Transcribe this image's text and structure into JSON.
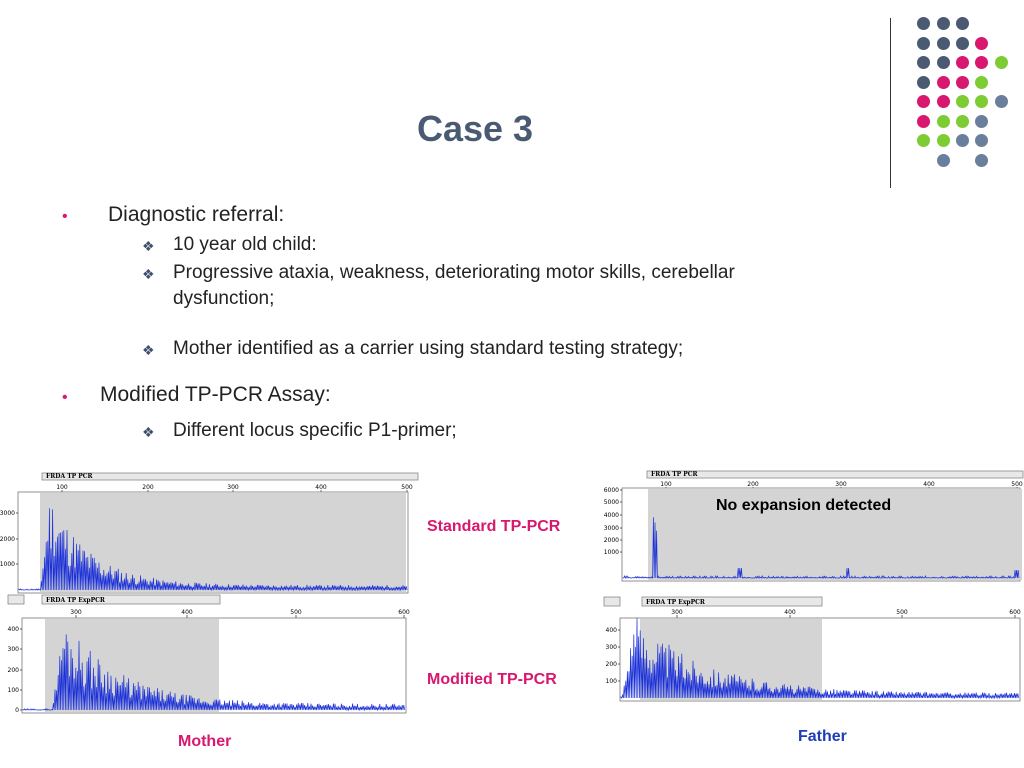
{
  "slide": {
    "title": "Case 3",
    "bullets": [
      {
        "label": "Diagnostic referral:",
        "subs": [
          "10 year old child:",
          "Progressive ataxia, weakness, deteriorating motor skills, cerebellar",
          "dysfunction;",
          "Mother identified as a carrier using standard testing strategy;"
        ]
      },
      {
        "label": "Modified TP-PCR Assay:",
        "subs": [
          "Different locus specific P1-primer;"
        ]
      }
    ],
    "labels": {
      "standard": "Standard TP-PCR",
      "modified": "Modified TP-PCR",
      "mother": "Mother",
      "father": "Father",
      "no_expansion": "No expansion detected"
    },
    "colors": {
      "pink": "#d8176e",
      "green": "#7dcc34",
      "slate": "#4a5a73",
      "trace": "#1a2fd8",
      "shade": "#d4d4d4"
    }
  },
  "electropherograms": [
    {
      "id": "mother-standard",
      "header": "FRDA TP PCR",
      "x_ticks": [
        "100",
        "200",
        "300",
        "400",
        "500"
      ],
      "y_ticks": [
        "3000",
        "2000",
        "1000"
      ]
    },
    {
      "id": "mother-modified",
      "header": "FRDA TP ExpPCR",
      "x_ticks": [
        "300",
        "400",
        "500",
        "600"
      ],
      "y_ticks": [
        "400",
        "300",
        "200",
        "100",
        "0"
      ]
    },
    {
      "id": "father-standard",
      "header": "FRDA TP PCR",
      "x_ticks": [
        "100",
        "200",
        "300",
        "400",
        "500"
      ],
      "y_ticks": [
        "6000",
        "5000",
        "4000",
        "3000",
        "2000",
        "1000"
      ]
    },
    {
      "id": "father-modified",
      "header": "FRDA TP ExpPCR",
      "x_ticks": [
        "300",
        "400",
        "500",
        "600"
      ],
      "y_ticks": [
        "400",
        "300",
        "200",
        "100"
      ]
    }
  ]
}
